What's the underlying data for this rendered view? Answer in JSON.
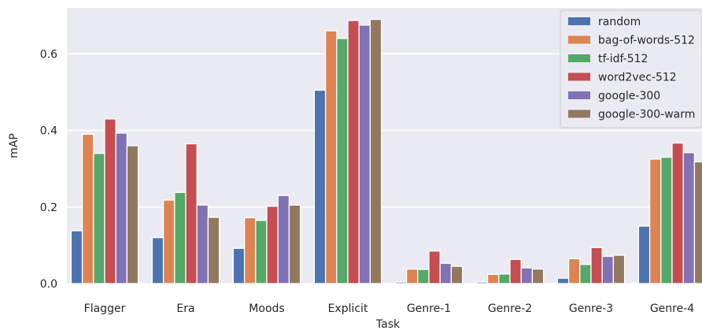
{
  "chart_data": {
    "type": "bar",
    "xlabel": "Task",
    "ylabel": "mAP",
    "ylim": [
      0,
      0.72
    ],
    "yticks": [
      "0.0",
      "0.2",
      "0.4",
      "0.6"
    ],
    "grid": true,
    "legend_position": "top-right",
    "background_color": "#eaeaf2",
    "grid_color": "#ffffff",
    "categories": [
      "Flagger",
      "Era",
      "Moods",
      "Explicit",
      "Genre-1",
      "Genre-2",
      "Genre-3",
      "Genre-4"
    ],
    "series": [
      {
        "name": "random",
        "color": "#4c72b0",
        "values": [
          0.138,
          0.12,
          0.092,
          0.505,
          0.004,
          0.004,
          0.014,
          0.15
        ]
      },
      {
        "name": "bag-of-words-512",
        "color": "#dd8452",
        "values": [
          0.39,
          0.218,
          0.172,
          0.66,
          0.038,
          0.024,
          0.065,
          0.325
        ]
      },
      {
        "name": "tf-idf-512",
        "color": "#55a868",
        "values": [
          0.34,
          0.238,
          0.165,
          0.64,
          0.037,
          0.025,
          0.05,
          0.33
        ]
      },
      {
        "name": "word2vec-512",
        "color": "#c44e52",
        "values": [
          0.43,
          0.365,
          0.202,
          0.687,
          0.085,
          0.063,
          0.094,
          0.367
        ]
      },
      {
        "name": "google-300",
        "color": "#8172b3",
        "values": [
          0.393,
          0.205,
          0.23,
          0.675,
          0.053,
          0.041,
          0.071,
          0.342
        ]
      },
      {
        "name": "google-300-warm",
        "color": "#937860",
        "values": [
          0.36,
          0.173,
          0.205,
          0.69,
          0.045,
          0.038,
          0.074,
          0.318
        ]
      }
    ]
  }
}
